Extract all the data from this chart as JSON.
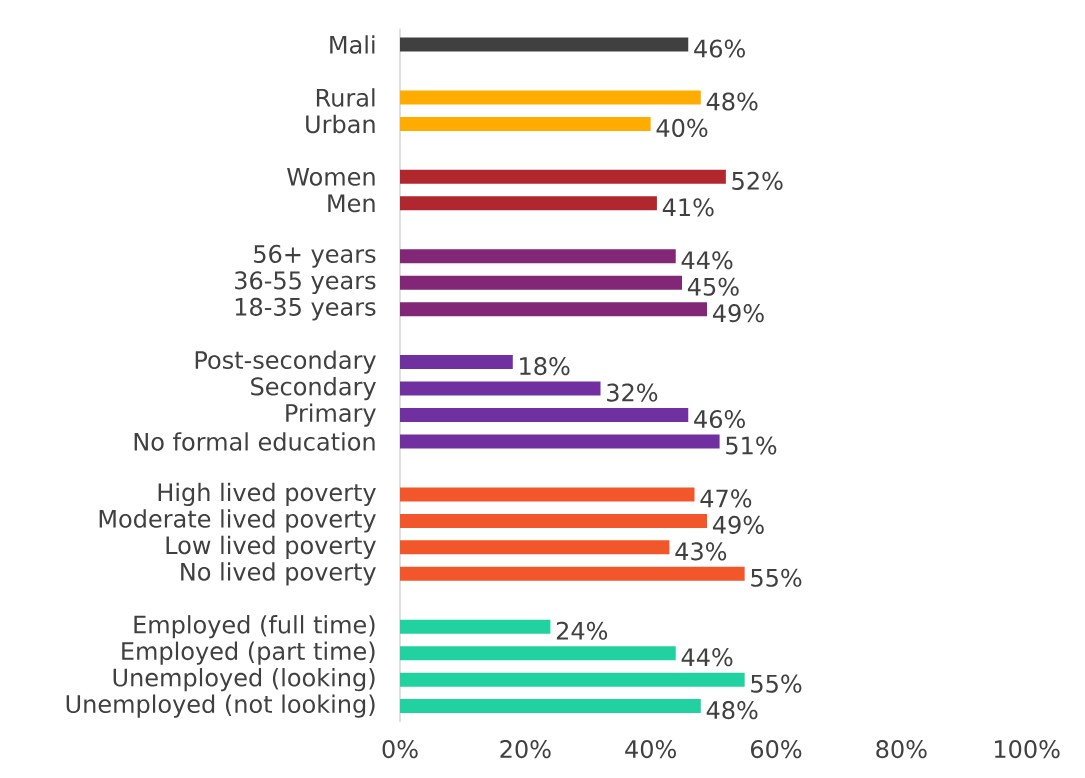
{
  "chart_data": {
    "type": "bar",
    "orientation": "horizontal",
    "categories": [
      "Mali",
      null,
      "Rural",
      "Urban",
      null,
      "Women",
      "Men",
      null,
      "56+ years",
      "36-55 years",
      "18-35 years",
      null,
      "Post-secondary",
      "Secondary",
      "Primary",
      "No formal education",
      null,
      "High lived poverty",
      "Moderate lived poverty",
      "Low lived poverty",
      "No lived poverty",
      null,
      "Employed (full time)",
      "Employed (part time)",
      "Unemployed (looking)",
      "Unemployed (not looking)"
    ],
    "values": [
      46,
      null,
      48,
      40,
      null,
      52,
      41,
      null,
      44,
      45,
      49,
      null,
      18,
      32,
      46,
      51,
      null,
      47,
      49,
      43,
      55,
      null,
      24,
      44,
      55,
      48
    ],
    "colors": [
      "#404040",
      null,
      "#ffac00",
      "#ffac00",
      null,
      "#b0272d",
      "#b0272d",
      null,
      "#822778",
      "#822778",
      "#822778",
      null,
      "#7030a0",
      "#7030a0",
      "#7030a0",
      "#7030a0",
      null,
      "#f2572c",
      "#f2572c",
      "#f2572c",
      "#f2572c",
      null,
      "#22d1a0",
      "#22d1a0",
      "#22d1a0",
      "#22d1a0"
    ],
    "value_labels": [
      "46%",
      null,
      "48%",
      "40%",
      null,
      "52%",
      "41%",
      null,
      "44%",
      "45%",
      "49%",
      null,
      "18%",
      "32%",
      "46%",
      "51%",
      null,
      "47%",
      "49%",
      "43%",
      "55%",
      null,
      "24%",
      "44%",
      "55%",
      "48%"
    ],
    "xlim": [
      0,
      100
    ],
    "xticks": [
      {
        "value": 0,
        "label": "0%"
      },
      {
        "value": 20,
        "label": "20%"
      },
      {
        "value": 40,
        "label": "40%"
      },
      {
        "value": 60,
        "label": "60%"
      },
      {
        "value": 80,
        "label": "80%"
      },
      {
        "value": 100,
        "label": "100%"
      }
    ],
    "grid": false
  }
}
